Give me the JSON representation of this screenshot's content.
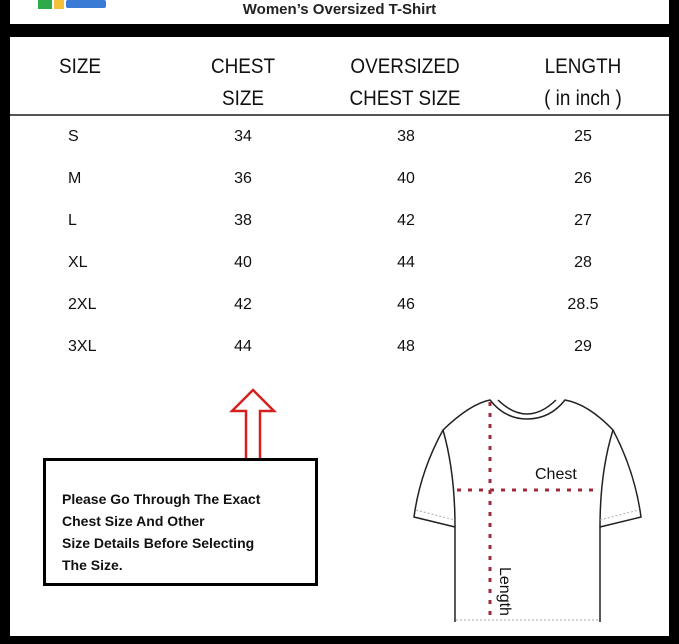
{
  "title": "Women’s Oversized T-Shirt",
  "table": {
    "headers": [
      [
        "SIZE",
        ""
      ],
      [
        "CHEST",
        "SIZE"
      ],
      [
        "OVERSIZED",
        "CHEST SIZE"
      ],
      [
        "LENGTH",
        "( in inch )"
      ]
    ],
    "rows": [
      [
        "S",
        "34",
        "38",
        "25"
      ],
      [
        "M",
        "36",
        "40",
        "26"
      ],
      [
        "L",
        "38",
        "42",
        "27"
      ],
      [
        "XL",
        "40",
        "44",
        "28"
      ],
      [
        "2XL",
        "42",
        "46",
        "28.5"
      ],
      [
        "3XL",
        "44",
        "48",
        "29"
      ]
    ]
  },
  "note": [
    "Please Go Through The Exact",
    "Chest Size And Other",
    "Size Details Before Selecting",
    "The Size."
  ],
  "diagram": {
    "chest_label": "Chest",
    "length_label": "Length"
  },
  "colors": {
    "arrow": "#d62020",
    "measure_line": "#a02a3a"
  }
}
